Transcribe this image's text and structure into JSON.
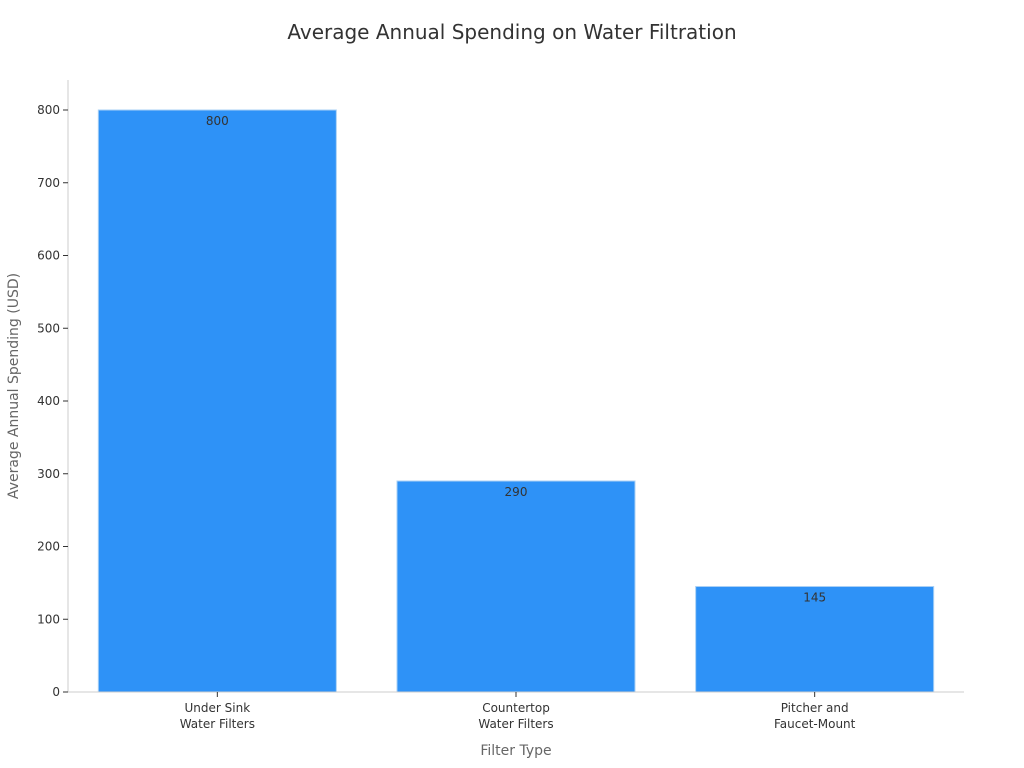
{
  "chart_data": {
    "type": "bar",
    "title": "Average Annual Spending on Water Filtration",
    "xlabel": "Filter Type",
    "ylabel": "Average Annual Spending (USD)",
    "categories": [
      [
        "Under Sink",
        "Water Filters"
      ],
      [
        "Countertop",
        "Water Filters"
      ],
      [
        "Pitcher and",
        "Faucet-Mount"
      ]
    ],
    "values": [
      800,
      290,
      145
    ],
    "data_labels": [
      "800",
      "290",
      "145"
    ],
    "ylim": [
      0,
      800
    ],
    "yticks": [
      0,
      100,
      200,
      300,
      400,
      500,
      600,
      700,
      800
    ],
    "grid": false,
    "bar_color": "#2e92f7",
    "bar_edge_color": "#a9d0f5"
  }
}
